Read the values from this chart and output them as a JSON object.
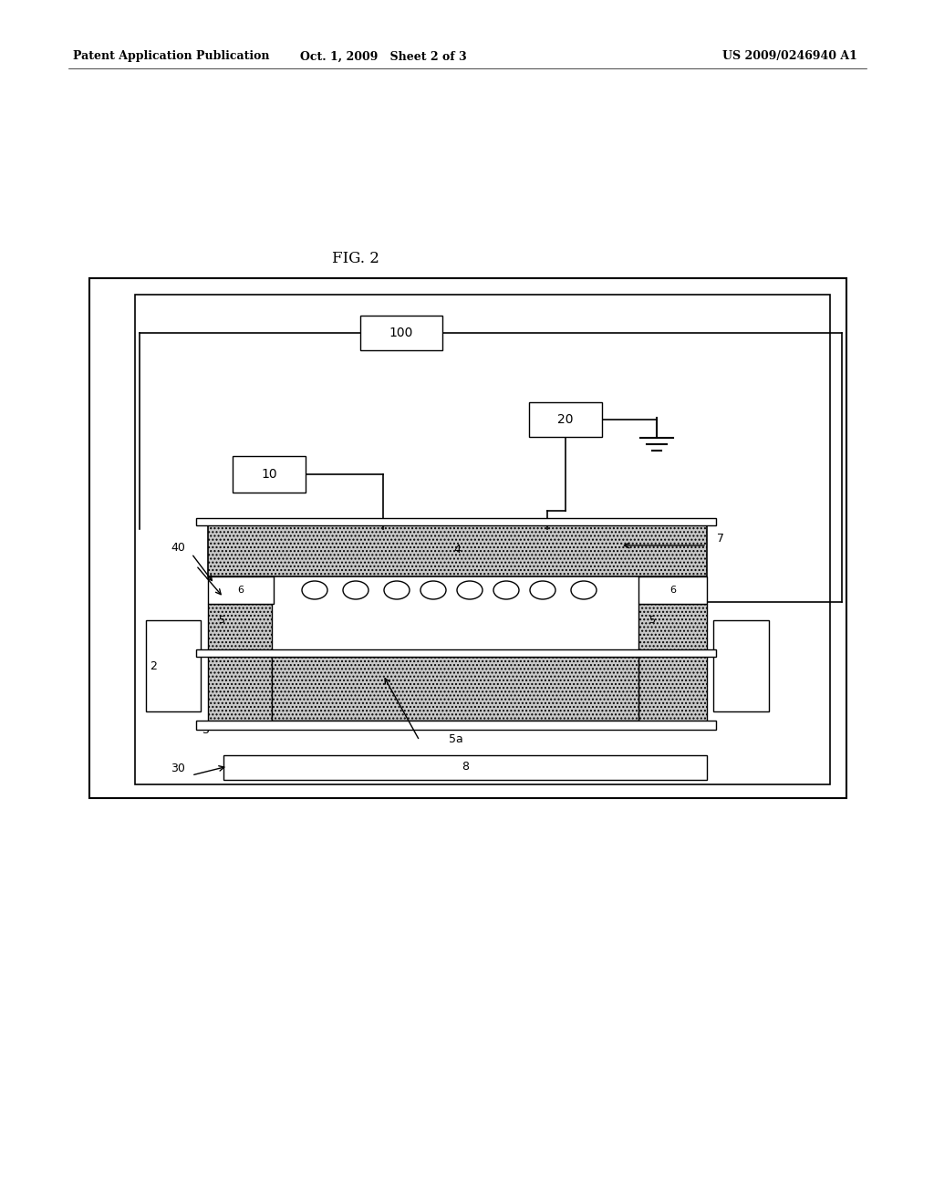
{
  "header_left": "Patent Application Publication",
  "header_center": "Oct. 1, 2009   Sheet 2 of 3",
  "header_right": "US 2009/0246940 A1",
  "fig_label": "FIG. 2",
  "bg_color": "#ffffff"
}
